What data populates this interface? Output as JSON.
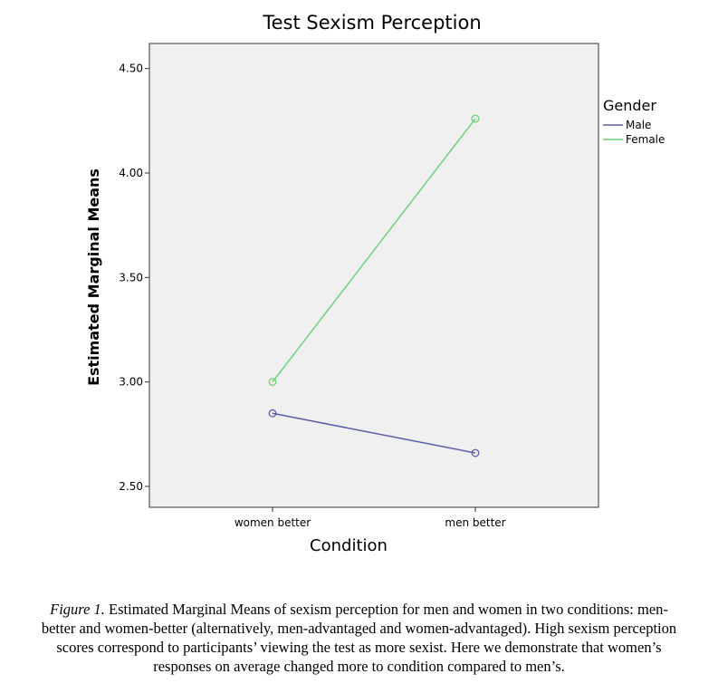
{
  "chart_data": {
    "type": "line",
    "title": "Test Sexism Perception",
    "xlabel": "Condition",
    "ylabel": "Estimated Marginal Means",
    "categories": [
      "women better",
      "men better"
    ],
    "ylim": [
      2.4,
      4.62
    ],
    "yticks": [
      2.5,
      3.0,
      3.5,
      4.0,
      4.5
    ],
    "ytick_labels": [
      "2.50",
      "3.00",
      "3.50",
      "4.00",
      "4.50"
    ],
    "legend_title": "Gender",
    "legend_position": "right",
    "series": [
      {
        "name": "Male",
        "values": [
          2.85,
          2.66
        ],
        "color": "#5b5ea6"
      },
      {
        "name": "Female",
        "values": [
          3.0,
          4.26
        ],
        "color": "#6ed27a"
      }
    ],
    "plot_background": "#f0f0f0",
    "grid": false
  },
  "caption": {
    "label": "Figure 1.",
    "text": "Estimated Marginal Means of sexism perception for men and women in two conditions: men-better and women-better (alternatively, men-advantaged and women-advantaged). High sexism perception scores correspond to participants’ viewing the test as more sexist. Here we demonstrate that women’s responses on average changed more to condition compared to men’s."
  }
}
